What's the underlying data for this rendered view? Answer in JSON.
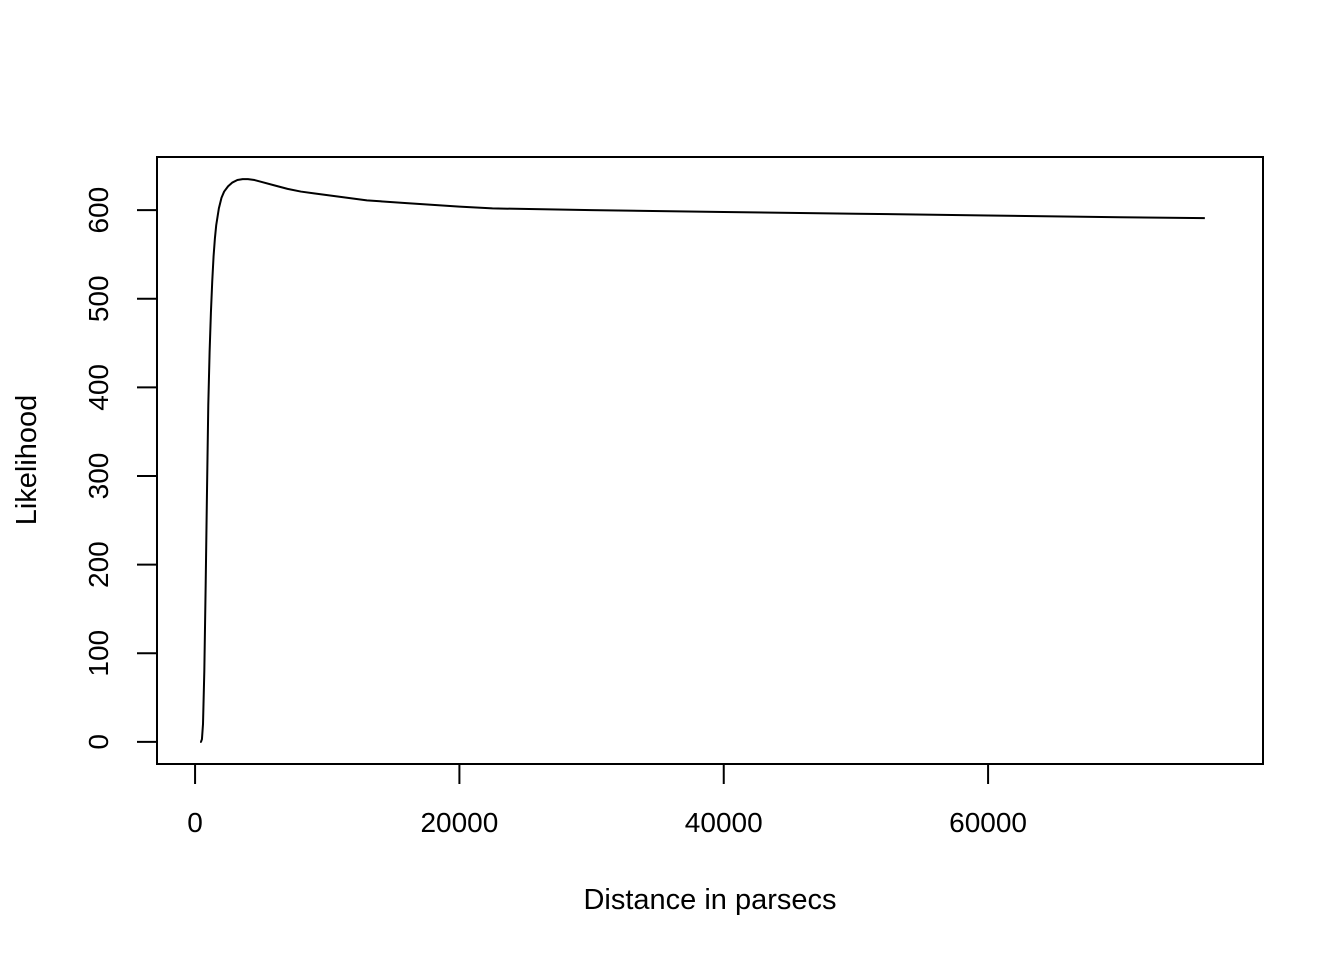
{
  "chart_data": {
    "type": "line",
    "title": "",
    "xlabel": "Distance in parsecs",
    "ylabel": "Likelihood",
    "xlim": [
      -2880,
      80800
    ],
    "ylim": [
      -25,
      660
    ],
    "xticks": [
      0,
      20000,
      40000,
      60000
    ],
    "xtick_labels": [
      "0",
      "20000",
      "40000",
      "60000"
    ],
    "yticks": [
      0,
      100,
      200,
      300,
      400,
      500,
      600
    ],
    "ytick_labels": [
      "0",
      "100",
      "200",
      "300",
      "400",
      "500",
      "600"
    ],
    "grid": false,
    "legend": "none",
    "line_color": "#000000",
    "series": [
      {
        "x": [
          380,
          450,
          520,
          600,
          700,
          800,
          900,
          1000,
          1100,
          1200,
          1300,
          1400,
          1500,
          1600,
          1800,
          2000,
          2200,
          2500,
          2800,
          3200,
          3600,
          4000,
          4500,
          5000,
          6000,
          7000,
          8000,
          9000,
          10000,
          11000,
          12000,
          13000,
          14000,
          16000,
          18000,
          20000,
          22500,
          30000,
          40000,
          50000,
          60000,
          70000,
          76400
        ],
        "y": [
          0,
          0,
          3,
          20,
          80,
          175,
          280,
          380,
          440,
          485,
          520,
          548,
          568,
          583,
          602,
          614,
          621,
          627,
          631,
          634,
          635,
          635,
          634,
          632,
          628,
          624,
          621,
          619,
          617,
          615,
          613,
          611,
          610,
          608,
          606,
          604,
          602,
          600,
          598,
          596,
          594,
          592,
          591
        ]
      }
    ]
  }
}
